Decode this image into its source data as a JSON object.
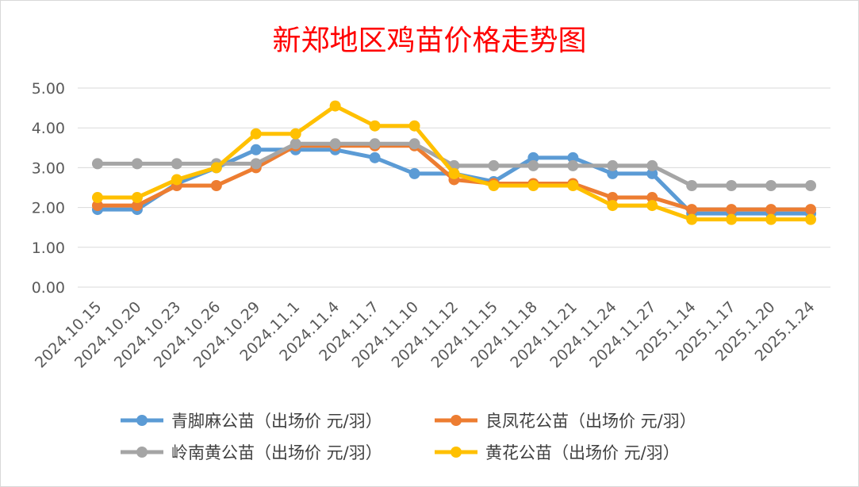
{
  "chart_data": {
    "type": "line",
    "title": "新郑地区鸡苗价格走势图",
    "xlabel": "",
    "ylabel": "",
    "ylim": [
      0,
      5
    ],
    "yticks": [
      "0.00",
      "1.00",
      "2.00",
      "3.00",
      "4.00",
      "5.00"
    ],
    "grid": true,
    "legend_position": "bottom",
    "categories": [
      "2024.10.15",
      "2024.10.20",
      "2024.10.23",
      "2024.10.26",
      "2024.10.29",
      "2024.11.1",
      "2024.11.4",
      "2024.11.7",
      "2024.11.10",
      "2024.11.12",
      "2024.11.15",
      "2024.11.18",
      "2024.11.21",
      "2024.11.24",
      "2024.11.27",
      "2025.1.14",
      "2025.1.17",
      "2025.1.20",
      "2025.1.24"
    ],
    "series": [
      {
        "name": "青脚麻公苗（出场价 元/羽）",
        "color": "#5b9bd5",
        "values": [
          1.95,
          1.95,
          2.6,
          3.0,
          3.45,
          3.45,
          3.45,
          3.25,
          2.85,
          2.85,
          2.65,
          3.25,
          3.25,
          2.85,
          2.85,
          1.85,
          1.85,
          1.85,
          1.85
        ]
      },
      {
        "name": "良凤花公苗（出场价 元/羽）",
        "color": "#ed7d31",
        "values": [
          2.05,
          2.05,
          2.55,
          2.55,
          3.0,
          3.55,
          3.55,
          3.55,
          3.55,
          2.7,
          2.6,
          2.6,
          2.6,
          2.25,
          2.25,
          1.95,
          1.95,
          1.95,
          1.95
        ]
      },
      {
        "name": "岭南黄公苗（出场价 元/羽）",
        "color": "#a5a5a5",
        "values": [
          3.1,
          3.1,
          3.1,
          3.1,
          3.1,
          3.6,
          3.6,
          3.6,
          3.6,
          3.05,
          3.05,
          3.05,
          3.05,
          3.05,
          3.05,
          2.55,
          2.55,
          2.55,
          2.55
        ]
      },
      {
        "name": "黄花公苗（出场价 元/羽）",
        "color": "#ffc000",
        "values": [
          2.25,
          2.25,
          2.7,
          3.0,
          3.85,
          3.85,
          4.55,
          4.05,
          4.05,
          2.85,
          2.55,
          2.55,
          2.55,
          2.05,
          2.05,
          1.7,
          1.7,
          1.7,
          1.7
        ]
      }
    ]
  }
}
